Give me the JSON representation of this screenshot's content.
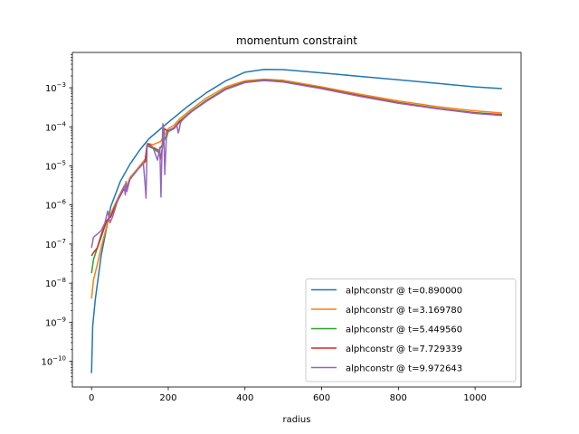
{
  "chart_data": {
    "type": "line",
    "title": "momentum constraint",
    "xlabel": "radius",
    "ylabel": "",
    "xlim": [
      -50,
      1120
    ],
    "ylim": [
      2.2e-11,
      0.008
    ],
    "yscale": "log",
    "xticks": [
      0,
      200,
      400,
      600,
      800,
      1000
    ],
    "xtick_labels": [
      "0",
      "200",
      "400",
      "600",
      "800",
      "1000"
    ],
    "yticks": [
      1e-10,
      1e-09,
      1e-08,
      1e-07,
      1e-06,
      1e-05,
      0.0001,
      0.001
    ],
    "ytick_labels": [
      {
        "base": "10",
        "exp": "−10"
      },
      {
        "base": "10",
        "exp": "−9"
      },
      {
        "base": "10",
        "exp": "−8"
      },
      {
        "base": "10",
        "exp": "−7"
      },
      {
        "base": "10",
        "exp": "−6"
      },
      {
        "base": "10",
        "exp": "−5"
      },
      {
        "base": "10",
        "exp": "−4"
      },
      {
        "base": "10",
        "exp": "−3"
      }
    ],
    "grid": false,
    "legend_position": "lower-right",
    "series": [
      {
        "name": "alphconstr @ t=0.890000",
        "color": "#1f77b4",
        "x": [
          0,
          3,
          10,
          25,
          50,
          75,
          100,
          125,
          150,
          200,
          250,
          300,
          350,
          400,
          450,
          500,
          600,
          700,
          800,
          900,
          1000,
          1070
        ],
        "y": [
          5e-11,
          8e-10,
          4e-09,
          5e-08,
          9e-07,
          4e-06,
          1.1e-05,
          2.5e-05,
          5e-05,
          0.00013,
          0.00033,
          0.00075,
          0.0015,
          0.0025,
          0.00295,
          0.0029,
          0.0024,
          0.00195,
          0.0016,
          0.0013,
          0.00105,
          0.00095
        ]
      },
      {
        "name": "alphconstr @ t=3.169780",
        "color": "#ff7f0e",
        "x": [
          0,
          5,
          15,
          25,
          40,
          50,
          70,
          88,
          92,
          100,
          120,
          140,
          145,
          160,
          180,
          200,
          215,
          230,
          260,
          300,
          350,
          400,
          450,
          500,
          600,
          700,
          800,
          900,
          1000,
          1070
        ],
        "y": [
          4e-09,
          1.2e-08,
          3e-08,
          8e-08,
          3e-07,
          6e-07,
          1.6e-06,
          3.5e-06,
          3e-06,
          5e-06,
          8.5e-06,
          1.5e-05,
          3.8e-05,
          3.5e-05,
          4.2e-05,
          9e-05,
          0.00011,
          0.00016,
          0.00028,
          0.00055,
          0.00105,
          0.0015,
          0.00165,
          0.00155,
          0.00105,
          0.00068,
          0.00046,
          0.00033,
          0.000255,
          0.000225
        ]
      },
      {
        "name": "alphconstr @ t=5.449560",
        "color": "#2ca02c",
        "x": [
          0,
          5,
          15,
          25,
          40,
          50,
          70,
          88,
          92,
          100,
          120,
          140,
          145,
          160,
          175,
          180,
          185,
          200,
          215,
          230,
          260,
          300,
          350,
          400,
          450,
          500,
          600,
          700,
          800,
          900,
          1000,
          1070
        ],
        "y": [
          1.8e-08,
          4e-08,
          8e-08,
          1.5e-07,
          4e-07,
          5e-07,
          1.5e-06,
          3e-06,
          2.5e-06,
          4.5e-06,
          8e-06,
          1.3e-05,
          3.3e-05,
          2.8e-05,
          2.2e-05,
          3e-05,
          3.5e-05,
          8e-05,
          9.5e-05,
          0.00014,
          0.00025,
          0.00048,
          0.00095,
          0.0014,
          0.00158,
          0.00145,
          0.00098,
          0.00063,
          0.00042,
          0.0003,
          0.00023,
          0.000205
        ]
      },
      {
        "name": "alphconstr @ t=7.729339",
        "color": "#d62728",
        "x": [
          0,
          5,
          15,
          25,
          40,
          50,
          70,
          88,
          92,
          100,
          120,
          140,
          145,
          150,
          160,
          175,
          180,
          185,
          190,
          200,
          215,
          230,
          260,
          300,
          350,
          400,
          450,
          500,
          600,
          700,
          800,
          900,
          1000,
          1070
        ],
        "y": [
          5e-08,
          6e-08,
          8e-08,
          1.7e-07,
          4e-07,
          5e-07,
          1.4e-06,
          3e-06,
          2.4e-06,
          4.5e-06,
          8e-06,
          1.3e-05,
          3.5e-05,
          3.6e-05,
          3e-05,
          2.5e-05,
          1.5e-05,
          3e-05,
          9e-05,
          7.5e-05,
          9e-05,
          0.000135,
          0.00024,
          0.00046,
          0.00092,
          0.00138,
          0.00155,
          0.00142,
          0.00096,
          0.00062,
          0.00041,
          0.000295,
          0.000225,
          0.0002
        ]
      },
      {
        "name": "alphconstr @ t=9.972643",
        "color": "#9467bd",
        "x": [
          0,
          5,
          15,
          25,
          35,
          42,
          48,
          55,
          70,
          85,
          88,
          90,
          92,
          100,
          120,
          135,
          140,
          142,
          145,
          160,
          172,
          178,
          181,
          182,
          184,
          186,
          188,
          191,
          195,
          200,
          210,
          222,
          226,
          228,
          232,
          240,
          260,
          300,
          350,
          400,
          450,
          500,
          600,
          700,
          800,
          900,
          1000,
          1070
        ],
        "y": [
          8e-08,
          1.5e-07,
          1.8e-07,
          2.2e-07,
          3.5e-07,
          7e-07,
          3.5e-07,
          5e-07,
          1.5e-06,
          3e-06,
          1.8e-06,
          4e-06,
          2.2e-06,
          4.5e-06,
          8e-06,
          1.2e-05,
          3e-06,
          1.5e-06,
          3.5e-05,
          3e-05,
          1.4e-05,
          3e-05,
          1.6e-06,
          5e-06,
          3e-05,
          0.00012,
          9e-05,
          6e-06,
          5e-05,
          7.5e-05,
          8.5e-05,
          0.000115,
          7e-05,
          8e-05,
          0.00013,
          0.00016,
          0.00024,
          0.00045,
          0.0009,
          0.00135,
          0.00152,
          0.0014,
          0.00094,
          0.0006,
          0.0004,
          0.00029,
          0.00022,
          0.000195
        ]
      }
    ]
  }
}
